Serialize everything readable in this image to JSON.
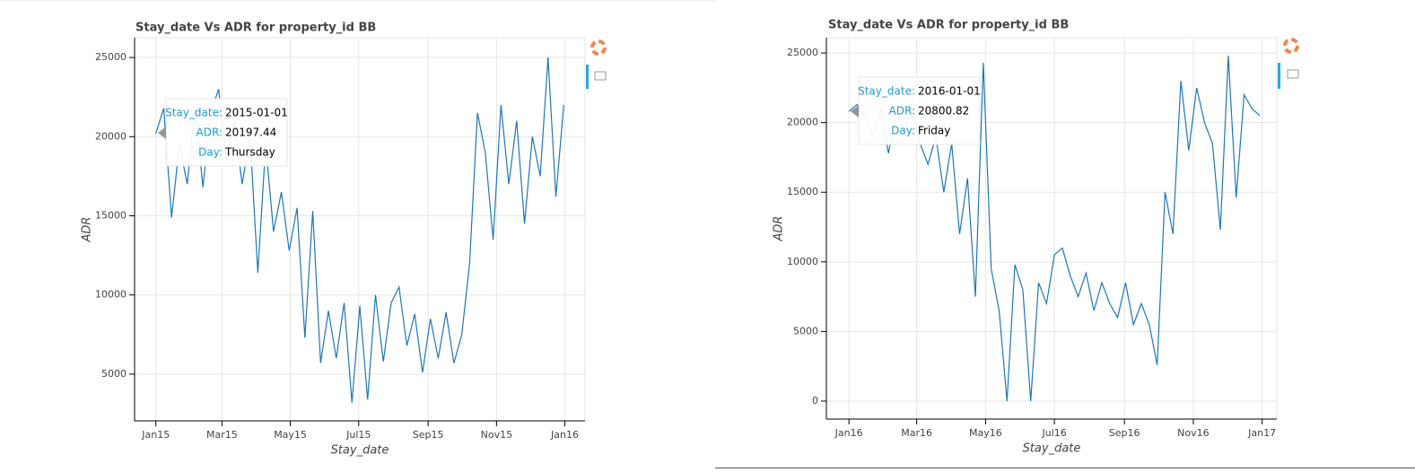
{
  "chart_data": [
    {
      "type": "line",
      "title": "Stay_date Vs ADR for property_id BB",
      "x_label": "Stay_date",
      "y_label": "ADR",
      "color": "#1f77b4",
      "grid": true,
      "x": [
        "2015-01-01",
        "2015-01-08",
        "2015-01-15",
        "2015-01-22",
        "2015-01-29",
        "2015-02-05",
        "2015-02-12",
        "2015-02-19",
        "2015-02-26",
        "2015-03-05",
        "2015-03-12",
        "2015-03-19",
        "2015-03-26",
        "2015-04-02",
        "2015-04-09",
        "2015-04-16",
        "2015-04-23",
        "2015-04-30",
        "2015-05-07",
        "2015-05-14",
        "2015-05-21",
        "2015-05-28",
        "2015-06-04",
        "2015-06-11",
        "2015-06-18",
        "2015-06-25",
        "2015-07-02",
        "2015-07-09",
        "2015-07-16",
        "2015-07-23",
        "2015-07-30",
        "2015-08-06",
        "2015-08-13",
        "2015-08-20",
        "2015-08-27",
        "2015-09-03",
        "2015-09-10",
        "2015-09-17",
        "2015-09-24",
        "2015-10-01",
        "2015-10-08",
        "2015-10-15",
        "2015-10-22",
        "2015-10-29",
        "2015-11-05",
        "2015-11-12",
        "2015-11-19",
        "2015-11-26",
        "2015-12-03",
        "2015-12-10",
        "2015-12-17",
        "2015-12-24",
        "2015-12-31"
      ],
      "values": [
        20197.44,
        21800,
        14900,
        19500,
        17000,
        22000,
        16800,
        21500,
        23000,
        18500,
        21000,
        17000,
        20000,
        11400,
        19500,
        14000,
        16500,
        12800,
        15500,
        7300,
        15300,
        5700,
        9000,
        6000,
        9500,
        3200,
        9300,
        3400,
        10000,
        5800,
        9500,
        10500,
        6800,
        8800,
        5100,
        8500,
        6000,
        8900,
        5700,
        7500,
        12000,
        21500,
        19000,
        13500,
        22000,
        17000,
        21000,
        14500,
        20000,
        17500,
        25000,
        16200,
        22000
      ],
      "xlim": [
        "2014-12-13",
        "2016-01-19"
      ],
      "ylim": [
        2050,
        26250
      ],
      "xticks": [
        {
          "value": "2015-01-01",
          "label": "Jan15"
        },
        {
          "value": "2015-03-01",
          "label": "Mar15"
        },
        {
          "value": "2015-05-01",
          "label": "May15"
        },
        {
          "value": "2015-07-01",
          "label": "Jul15"
        },
        {
          "value": "2015-09-01",
          "label": "Sep15"
        },
        {
          "value": "2015-11-01",
          "label": "Nov15"
        },
        {
          "value": "2016-01-01",
          "label": "Jan16"
        }
      ],
      "yticks": [
        5000,
        10000,
        15000,
        20000,
        25000
      ],
      "tooltip": [
        {
          "label": "Stay_date:",
          "value": "2015-01-01"
        },
        {
          "label": "ADR:",
          "value": 20197.44
        },
        {
          "label": "Day:",
          "value": "Thursday"
        }
      ]
    },
    {
      "type": "line",
      "title": "Stay_date Vs ADR for property_id BB",
      "x_label": "Stay_date",
      "y_label": "ADR",
      "color": "#1f77b4",
      "grid": true,
      "x": [
        "2016-01-01",
        "2016-01-08",
        "2016-01-15",
        "2016-01-22",
        "2016-01-29",
        "2016-02-05",
        "2016-02-12",
        "2016-02-19",
        "2016-02-26",
        "2016-03-04",
        "2016-03-11",
        "2016-03-18",
        "2016-03-25",
        "2016-04-01",
        "2016-04-08",
        "2016-04-15",
        "2016-04-22",
        "2016-04-29",
        "2016-05-06",
        "2016-05-13",
        "2016-05-20",
        "2016-05-27",
        "2016-06-03",
        "2016-06-10",
        "2016-06-17",
        "2016-06-24",
        "2016-07-01",
        "2016-07-08",
        "2016-07-15",
        "2016-07-22",
        "2016-07-29",
        "2016-08-05",
        "2016-08-12",
        "2016-08-19",
        "2016-08-26",
        "2016-09-02",
        "2016-09-09",
        "2016-09-16",
        "2016-09-23",
        "2016-09-30",
        "2016-10-07",
        "2016-10-14",
        "2016-10-21",
        "2016-10-28",
        "2016-11-04",
        "2016-11-11",
        "2016-11-18",
        "2016-11-25",
        "2016-12-02",
        "2016-12-09",
        "2016-12-16",
        "2016-12-23",
        "2016-12-30"
      ],
      "values": [
        20800.82,
        21300,
        20500,
        19000,
        21000,
        17800,
        20800,
        19500,
        21500,
        18500,
        17000,
        19000,
        15000,
        18500,
        12000,
        16000,
        7500,
        24300,
        9500,
        6500,
        0,
        9800,
        8000,
        0,
        8500,
        7000,
        10500,
        11000,
        9000,
        7500,
        9200,
        6500,
        8500,
        7000,
        6000,
        8500,
        5500,
        7000,
        5500,
        2600,
        15000,
        12000,
        23000,
        18000,
        22500,
        20000,
        18500,
        12300,
        24800,
        14600,
        22000,
        21000,
        20500
      ],
      "xlim": [
        "2015-12-12",
        "2017-01-14"
      ],
      "ylim": [
        -1290,
        26100
      ],
      "xticks": [
        {
          "value": "2016-01-01",
          "label": "Jan16"
        },
        {
          "value": "2016-03-01",
          "label": "Mar16"
        },
        {
          "value": "2016-05-01",
          "label": "May16"
        },
        {
          "value": "2016-07-01",
          "label": "Jul16"
        },
        {
          "value": "2016-09-01",
          "label": "Sep16"
        },
        {
          "value": "2016-11-01",
          "label": "Nov16"
        },
        {
          "value": "2017-01-01",
          "label": "Jan17"
        }
      ],
      "yticks": [
        0,
        5000,
        10000,
        15000,
        20000,
        25000
      ],
      "tooltip": [
        {
          "label": "Stay_date:",
          "value": "2016-01-01"
        },
        {
          "label": "ADR:",
          "value": 20800.82
        },
        {
          "label": "Day:",
          "value": "Friday"
        }
      ]
    }
  ]
}
